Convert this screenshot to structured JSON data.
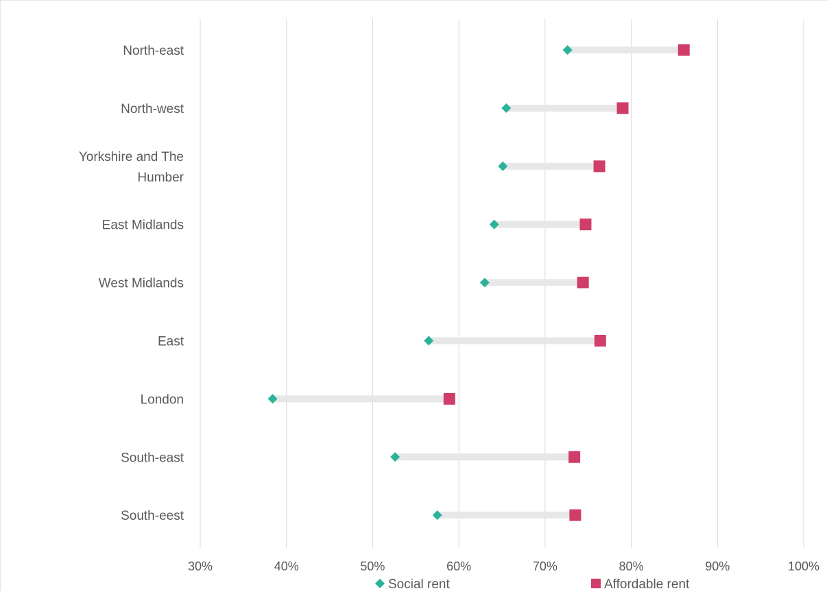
{
  "chart_data": {
    "type": "dumbbell",
    "categories": [
      "North-east",
      "North-west",
      "Yorkshire and The Humber",
      "East Midlands",
      "West Midlands",
      "East",
      "London",
      "South-east",
      "South-eest"
    ],
    "category_lines": [
      [
        "North-east"
      ],
      [
        "North-west"
      ],
      [
        "Yorkshire and The",
        "Humber"
      ],
      [
        "East Midlands"
      ],
      [
        "West Midlands"
      ],
      [
        "East"
      ],
      [
        "London"
      ],
      [
        "South-east"
      ],
      [
        "South-eest"
      ]
    ],
    "series": [
      {
        "name": "Social rent",
        "marker": "diamond",
        "color": "#2bb39a",
        "values": [
          72.6,
          65.5,
          65.1,
          64.1,
          63.0,
          56.5,
          38.4,
          52.6,
          57.5
        ]
      },
      {
        "name": "Affordable rent",
        "marker": "square",
        "color": "#cf3d68",
        "values": [
          86.1,
          79.0,
          76.3,
          74.7,
          74.4,
          76.4,
          58.9,
          73.4,
          73.5
        ]
      }
    ],
    "connector_color": "#e7e7e7",
    "gridline_color": "#d9d9d9",
    "xlim": [
      30,
      100
    ],
    "xticks": [
      30,
      40,
      50,
      60,
      70,
      80,
      90,
      100
    ],
    "xtick_labels": [
      "30%",
      "40%",
      "50%",
      "60%",
      "70%",
      "80%",
      "90%",
      "100%"
    ],
    "grid": true,
    "legend_position": "bottom",
    "title": "",
    "xlabel": "",
    "ylabel": ""
  }
}
